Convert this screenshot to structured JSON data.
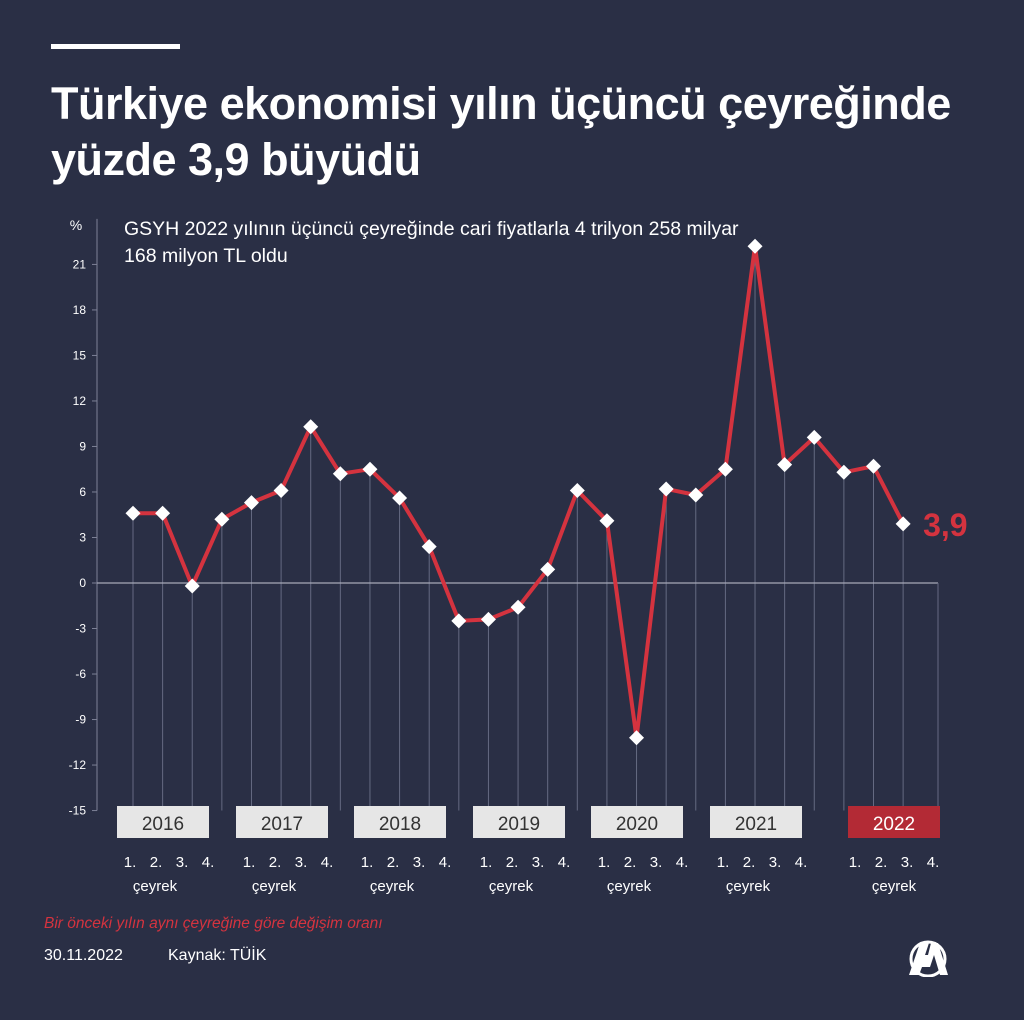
{
  "header": {
    "title": "Türkiye ekonomisi yılın üçüncü çeyreğinde yüzde 3,9 büyüdü"
  },
  "subtitle": "GSYH 2022 yılının üçüncü çeyreğinde cari fiyatlarla 4 trilyon 258 milyar 168 milyon TL oldu",
  "footer": {
    "note": "Bir önceki yılın aynı çeyreğine göre değişim oranı",
    "date": "30.11.2022",
    "source": "Kaynak: TÜİK"
  },
  "logo": {
    "icon": "aa-logo-icon"
  },
  "colors": {
    "background": "#2a2f45",
    "line": "#d4333f",
    "marker": "#ffffff",
    "year_box": "#e6e6e6",
    "year_box_highlight": "#b32a35"
  },
  "chart_data": {
    "type": "line",
    "ylabel": "%",
    "ylim": [
      -15,
      24
    ],
    "yticks": [
      -15,
      -12,
      -9,
      -6,
      -3,
      0,
      3,
      6,
      9,
      12,
      15,
      18,
      21
    ],
    "years": [
      "2016",
      "2017",
      "2018",
      "2019",
      "2020",
      "2021",
      "2022"
    ],
    "highlight_year": "2022",
    "quarter_labels": [
      "1.",
      "2.",
      "3.",
      "4."
    ],
    "quarter_caption": "çeyrek",
    "series": [
      {
        "values": [
          4.6,
          4.6,
          -0.2,
          4.2,
          5.3,
          6.1,
          10.3,
          7.2,
          7.5,
          5.6,
          2.4,
          -2.5,
          -2.4,
          -1.6,
          0.9,
          6.1,
          4.1,
          -10.2,
          6.2,
          5.8,
          7.5,
          22.2,
          7.8,
          9.6,
          7.3,
          7.7,
          3.9
        ],
        "display": [
          "4,6",
          "4,6",
          "-0,2",
          "4,2",
          "5,3",
          "6,1",
          "10,3",
          "7,2",
          "7,5",
          "5,6",
          "2,4",
          "-2,5",
          "-2,4",
          "-1,6",
          "0,9",
          "6,1",
          "4,1",
          "-10,2",
          "6,2",
          "5,8",
          "7,5",
          "22,2",
          "7,8",
          "9,6",
          "7,3",
          "7,7",
          "3,9"
        ]
      }
    ],
    "last_value_label": "3,9",
    "grid": false
  }
}
